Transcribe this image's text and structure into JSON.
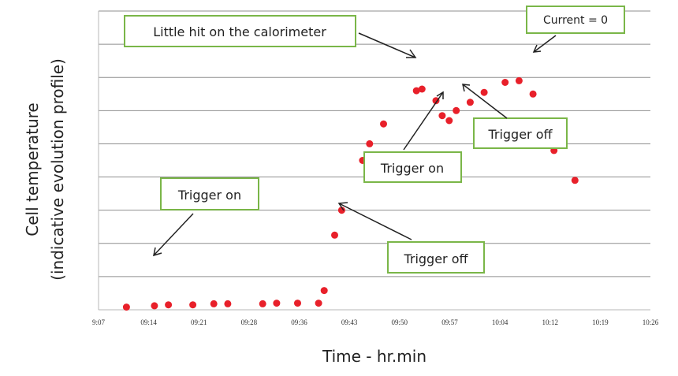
{
  "chart_data": {
    "type": "scatter",
    "title": "",
    "xlabel": "Time - hr.min",
    "ylabel": [
      "Cell temperature",
      "(indicative  evolution profile)"
    ],
    "x_tick_labels": [
      "9:07",
      "09:14",
      "09:21",
      "09:28",
      "09:36",
      "09:43",
      "09:50",
      "09:57",
      "10:04",
      "10:12",
      "10:19",
      "10:26"
    ],
    "x_range_minutes": [
      547,
      626
    ],
    "y_range": [
      0,
      9
    ],
    "grid": "horizontal",
    "marker_color": "#e8202a",
    "annotation_border_color": "#7ab648",
    "points": [
      {
        "t": 551.0,
        "y": 0.08
      },
      {
        "t": 555.0,
        "y": 0.12
      },
      {
        "t": 557.0,
        "y": 0.15
      },
      {
        "t": 560.5,
        "y": 0.15
      },
      {
        "t": 563.5,
        "y": 0.18
      },
      {
        "t": 565.5,
        "y": 0.18
      },
      {
        "t": 570.5,
        "y": 0.18
      },
      {
        "t": 572.5,
        "y": 0.2
      },
      {
        "t": 575.5,
        "y": 0.2
      },
      {
        "t": 578.5,
        "y": 0.2
      },
      {
        "t": 579.3,
        "y": 0.58
      },
      {
        "t": 580.8,
        "y": 2.25
      },
      {
        "t": 581.8,
        "y": 3.0
      },
      {
        "t": 584.8,
        "y": 4.5
      },
      {
        "t": 585.8,
        "y": 5.0
      },
      {
        "t": 587.8,
        "y": 5.6
      },
      {
        "t": 592.5,
        "y": 6.6
      },
      {
        "t": 593.3,
        "y": 6.65
      },
      {
        "t": 595.3,
        "y": 6.3
      },
      {
        "t": 596.2,
        "y": 5.85
      },
      {
        "t": 597.2,
        "y": 5.7
      },
      {
        "t": 598.2,
        "y": 6.0
      },
      {
        "t": 600.2,
        "y": 6.25
      },
      {
        "t": 602.2,
        "y": 6.55
      },
      {
        "t": 605.2,
        "y": 6.85
      },
      {
        "t": 607.2,
        "y": 6.9
      },
      {
        "t": 609.2,
        "y": 6.5
      },
      {
        "t": 610.2,
        "y": 5.65
      },
      {
        "t": 612.2,
        "y": 4.8
      },
      {
        "t": 615.2,
        "y": 3.9
      }
    ],
    "annotations": [
      {
        "text": "Little hit on the calorimeter",
        "point_index": 16
      },
      {
        "text": "Current = 0",
        "point_index": 25
      },
      {
        "text": "Trigger off",
        "point_index": 21
      },
      {
        "text": "Trigger on",
        "point_index": 19
      },
      {
        "text": "Trigger on",
        "point_index": 1
      },
      {
        "text": "Trigger off",
        "point_index": 11
      }
    ]
  }
}
